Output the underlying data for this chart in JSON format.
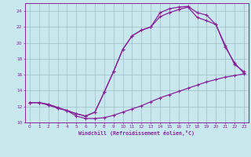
{
  "bg_color": "#c8e8ee",
  "grid_color": "#9bbec8",
  "line_color": "#882299",
  "xlim": [
    -0.5,
    23.5
  ],
  "ylim": [
    10,
    25
  ],
  "yticks": [
    10,
    12,
    14,
    16,
    18,
    20,
    22,
    24
  ],
  "xticks": [
    0,
    1,
    2,
    3,
    4,
    5,
    6,
    7,
    8,
    9,
    10,
    11,
    12,
    13,
    14,
    15,
    16,
    17,
    18,
    19,
    20,
    21,
    22,
    23
  ],
  "xlabel": "Windchill (Refroidissement éolien,°C)",
  "curve1_x": [
    0,
    1,
    2,
    3,
    4,
    5,
    6,
    7,
    8,
    9,
    10,
    11,
    12,
    13,
    14,
    15,
    16,
    17,
    18,
    19,
    20,
    21,
    22,
    23
  ],
  "curve1_y": [
    12.5,
    12.5,
    12.3,
    11.9,
    11.5,
    10.8,
    10.5,
    10.5,
    10.6,
    10.9,
    11.3,
    11.7,
    12.1,
    12.6,
    13.1,
    13.5,
    13.9,
    14.3,
    14.7,
    15.1,
    15.4,
    15.7,
    15.9,
    16.1
  ],
  "curve2_x": [
    0,
    1,
    2,
    3,
    4,
    5,
    6,
    7,
    8,
    9,
    10,
    11,
    12,
    13,
    14,
    15,
    16,
    17,
    18,
    19,
    20,
    21,
    22,
    23
  ],
  "curve2_y": [
    12.5,
    12.5,
    12.2,
    11.8,
    11.5,
    11.1,
    10.8,
    11.3,
    13.8,
    16.4,
    19.2,
    20.9,
    21.6,
    22.0,
    23.8,
    24.3,
    24.5,
    24.6,
    23.8,
    23.5,
    22.3,
    19.7,
    17.3,
    16.4
  ],
  "curve3_x": [
    0,
    1,
    2,
    3,
    4,
    5,
    6,
    7,
    8,
    9,
    10,
    11,
    12,
    13,
    14,
    15,
    16,
    17,
    18,
    19,
    20,
    21,
    22,
    23
  ],
  "curve3_y": [
    12.5,
    12.5,
    12.2,
    11.8,
    11.5,
    11.1,
    10.8,
    11.3,
    13.8,
    16.4,
    19.2,
    20.9,
    21.6,
    22.0,
    23.3,
    23.8,
    24.2,
    24.5,
    23.2,
    22.8,
    22.3,
    19.5,
    17.5,
    16.2
  ]
}
